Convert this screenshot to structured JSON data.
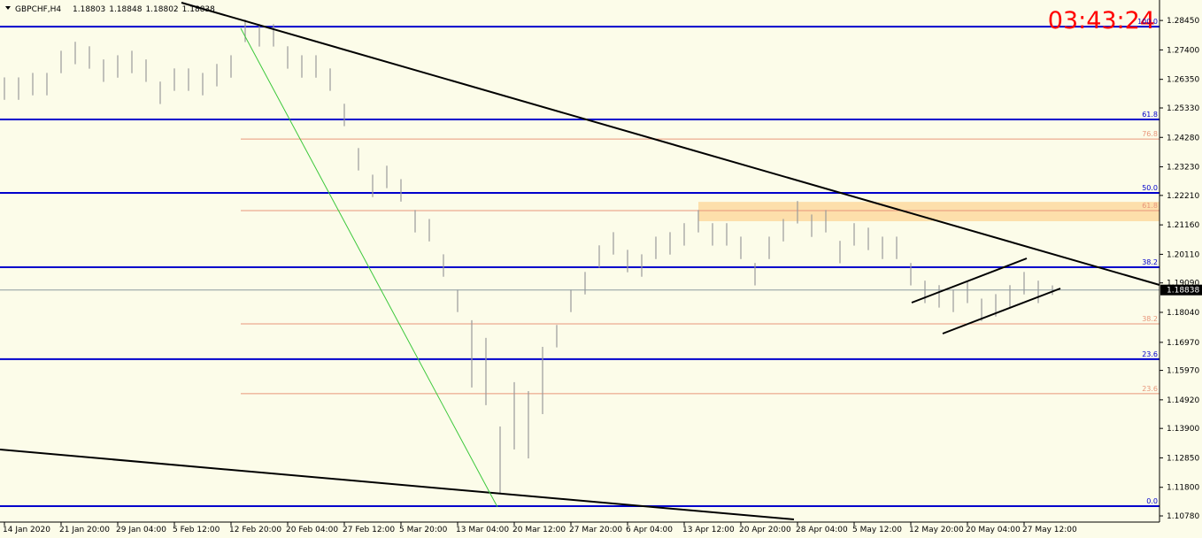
{
  "chart_data": {
    "type": "ohlc",
    "title": "GBPCHF,H4",
    "quote": [
      1.18803,
      1.18848,
      1.18802,
      1.18838
    ],
    "timer": "03:43:24",
    "last_price": 1.18838,
    "categories": [
      "14 Jan 2020",
      "21 Jan 20:00",
      "29 Jan 04:00",
      "5 Feb 12:00",
      "12 Feb 20:00",
      "20 Feb 04:00",
      "27 Feb 12:00",
      "5 Mar 20:00",
      "13 Mar 04:00",
      "20 Mar 12:00",
      "27 Mar 20:00",
      "6 Apr 04:00",
      "13 Apr 12:00",
      "20 Apr 20:00",
      "28 Apr 04:00",
      "5 May 12:00",
      "12 May 20:00",
      "20 May 04:00",
      "27 May 12:00"
    ],
    "high": [
      1.2642,
      1.2642,
      1.2658,
      1.2658,
      1.2737,
      1.2769,
      1.2753,
      1.2706,
      1.2721,
      1.2737,
      1.2706,
      1.2627,
      1.2674,
      1.2674,
      1.2658,
      1.269,
      1.2721,
      1.2848,
      1.2832,
      1.2832,
      1.2753,
      1.2721,
      1.2721,
      1.2674,
      1.2548,
      1.239,
      1.2295,
      1.2327,
      1.2279,
      1.2169,
      1.2137,
      1.2011,
      1.1885,
      1.1776,
      1.1713,
      1.1397,
      1.1555,
      1.1523,
      1.1681,
      1.1759,
      1.1885,
      1.1948,
      1.2043,
      1.209,
      1.2027,
      1.2011,
      1.2074,
      1.209,
      1.2122,
      1.2169,
      1.2122,
      1.2122,
      1.2074,
      1.198,
      1.2074,
      1.2137,
      1.2201,
      1.2153,
      1.2169,
      1.2059,
      1.2122,
      1.2106,
      1.2074,
      1.2074,
      1.198,
      1.1917,
      1.1901,
      1.1885,
      1.1917,
      1.1853,
      1.1869,
      1.1901,
      1.1948,
      1.1917,
      1.19
    ],
    "low": [
      1.2562,
      1.2562,
      1.2578,
      1.2578,
      1.2657,
      1.2689,
      1.2673,
      1.2626,
      1.2641,
      1.2657,
      1.2626,
      1.2547,
      1.2594,
      1.2594,
      1.2578,
      1.261,
      1.2641,
      1.2768,
      1.2752,
      1.2752,
      1.2673,
      1.2641,
      1.2641,
      1.2594,
      1.2468,
      1.231,
      1.2215,
      1.2247,
      1.2199,
      1.2089,
      1.2057,
      1.1931,
      1.1805,
      1.1536,
      1.1473,
      1.1157,
      1.1315,
      1.1283,
      1.1441,
      1.1679,
      1.1805,
      1.1868,
      1.1963,
      1.201,
      1.1947,
      1.1931,
      1.1994,
      1.201,
      1.2042,
      1.2089,
      1.2042,
      1.2042,
      1.1994,
      1.19,
      1.1994,
      1.2057,
      1.2121,
      1.2073,
      1.2089,
      1.1979,
      1.2042,
      1.2026,
      1.1994,
      1.1994,
      1.19,
      1.1837,
      1.1821,
      1.1805,
      1.1837,
      1.1773,
      1.1789,
      1.1821,
      1.1868,
      1.1837,
      1.1866
    ],
    "bar_color": "#9a9a9a",
    "ylim": [
      1.1056,
      1.2918
    ],
    "yticks": [
      {
        "value": 1.2845,
        "label": "1.28450"
      },
      {
        "value": 1.274,
        "label": "1.27400"
      },
      {
        "value": 1.2635,
        "label": "1.26350"
      },
      {
        "value": 1.2533,
        "label": "1.25330"
      },
      {
        "value": 1.2428,
        "label": "1.24280"
      },
      {
        "value": 1.2323,
        "label": "1.23230"
      },
      {
        "value": 1.2221,
        "label": "1.22210"
      },
      {
        "value": 1.2116,
        "label": "1.21160"
      },
      {
        "value": 1.2011,
        "label": "1.20110"
      },
      {
        "value": 1.1909,
        "label": "1.19090"
      },
      {
        "value": 1.1804,
        "label": "1.18040"
      },
      {
        "value": 1.1697,
        "label": "1.16970"
      },
      {
        "value": 1.1597,
        "label": "1.15970"
      },
      {
        "value": 1.1492,
        "label": "1.14920"
      },
      {
        "value": 1.139,
        "label": "1.13900"
      },
      {
        "value": 1.1285,
        "label": "1.12850"
      },
      {
        "value": 1.118,
        "label": "1.11800"
      },
      {
        "value": 1.1078,
        "label": "1.10780"
      }
    ],
    "levels": [
      {
        "label": "100.0",
        "value": 1.2823,
        "color": "#0000cc"
      },
      {
        "label": "61.8",
        "value": 1.2492,
        "color": "#0000cc"
      },
      {
        "label": "50.0",
        "value": 1.223,
        "color": "#0000cc"
      },
      {
        "label": "38.2",
        "value": 1.1965,
        "color": "#0000cc"
      },
      {
        "label": "23.6",
        "value": 1.1637,
        "color": "#0000cc"
      },
      {
        "label": "0.0",
        "value": 1.1113,
        "color": "#0000cc"
      },
      {
        "label": "76.8",
        "value": 1.2422,
        "color": "#e8967a"
      },
      {
        "label": "61.8",
        "value": 1.2167,
        "color": "#e8967a"
      },
      {
        "label": "38.2",
        "value": 1.1763,
        "color": "#e8967a"
      },
      {
        "label": "23.6",
        "value": 1.1514,
        "color": "#e8967a"
      }
    ],
    "zone": [
      1.2129,
      1.2198
    ],
    "zone_color": "#fdd9a0"
  }
}
